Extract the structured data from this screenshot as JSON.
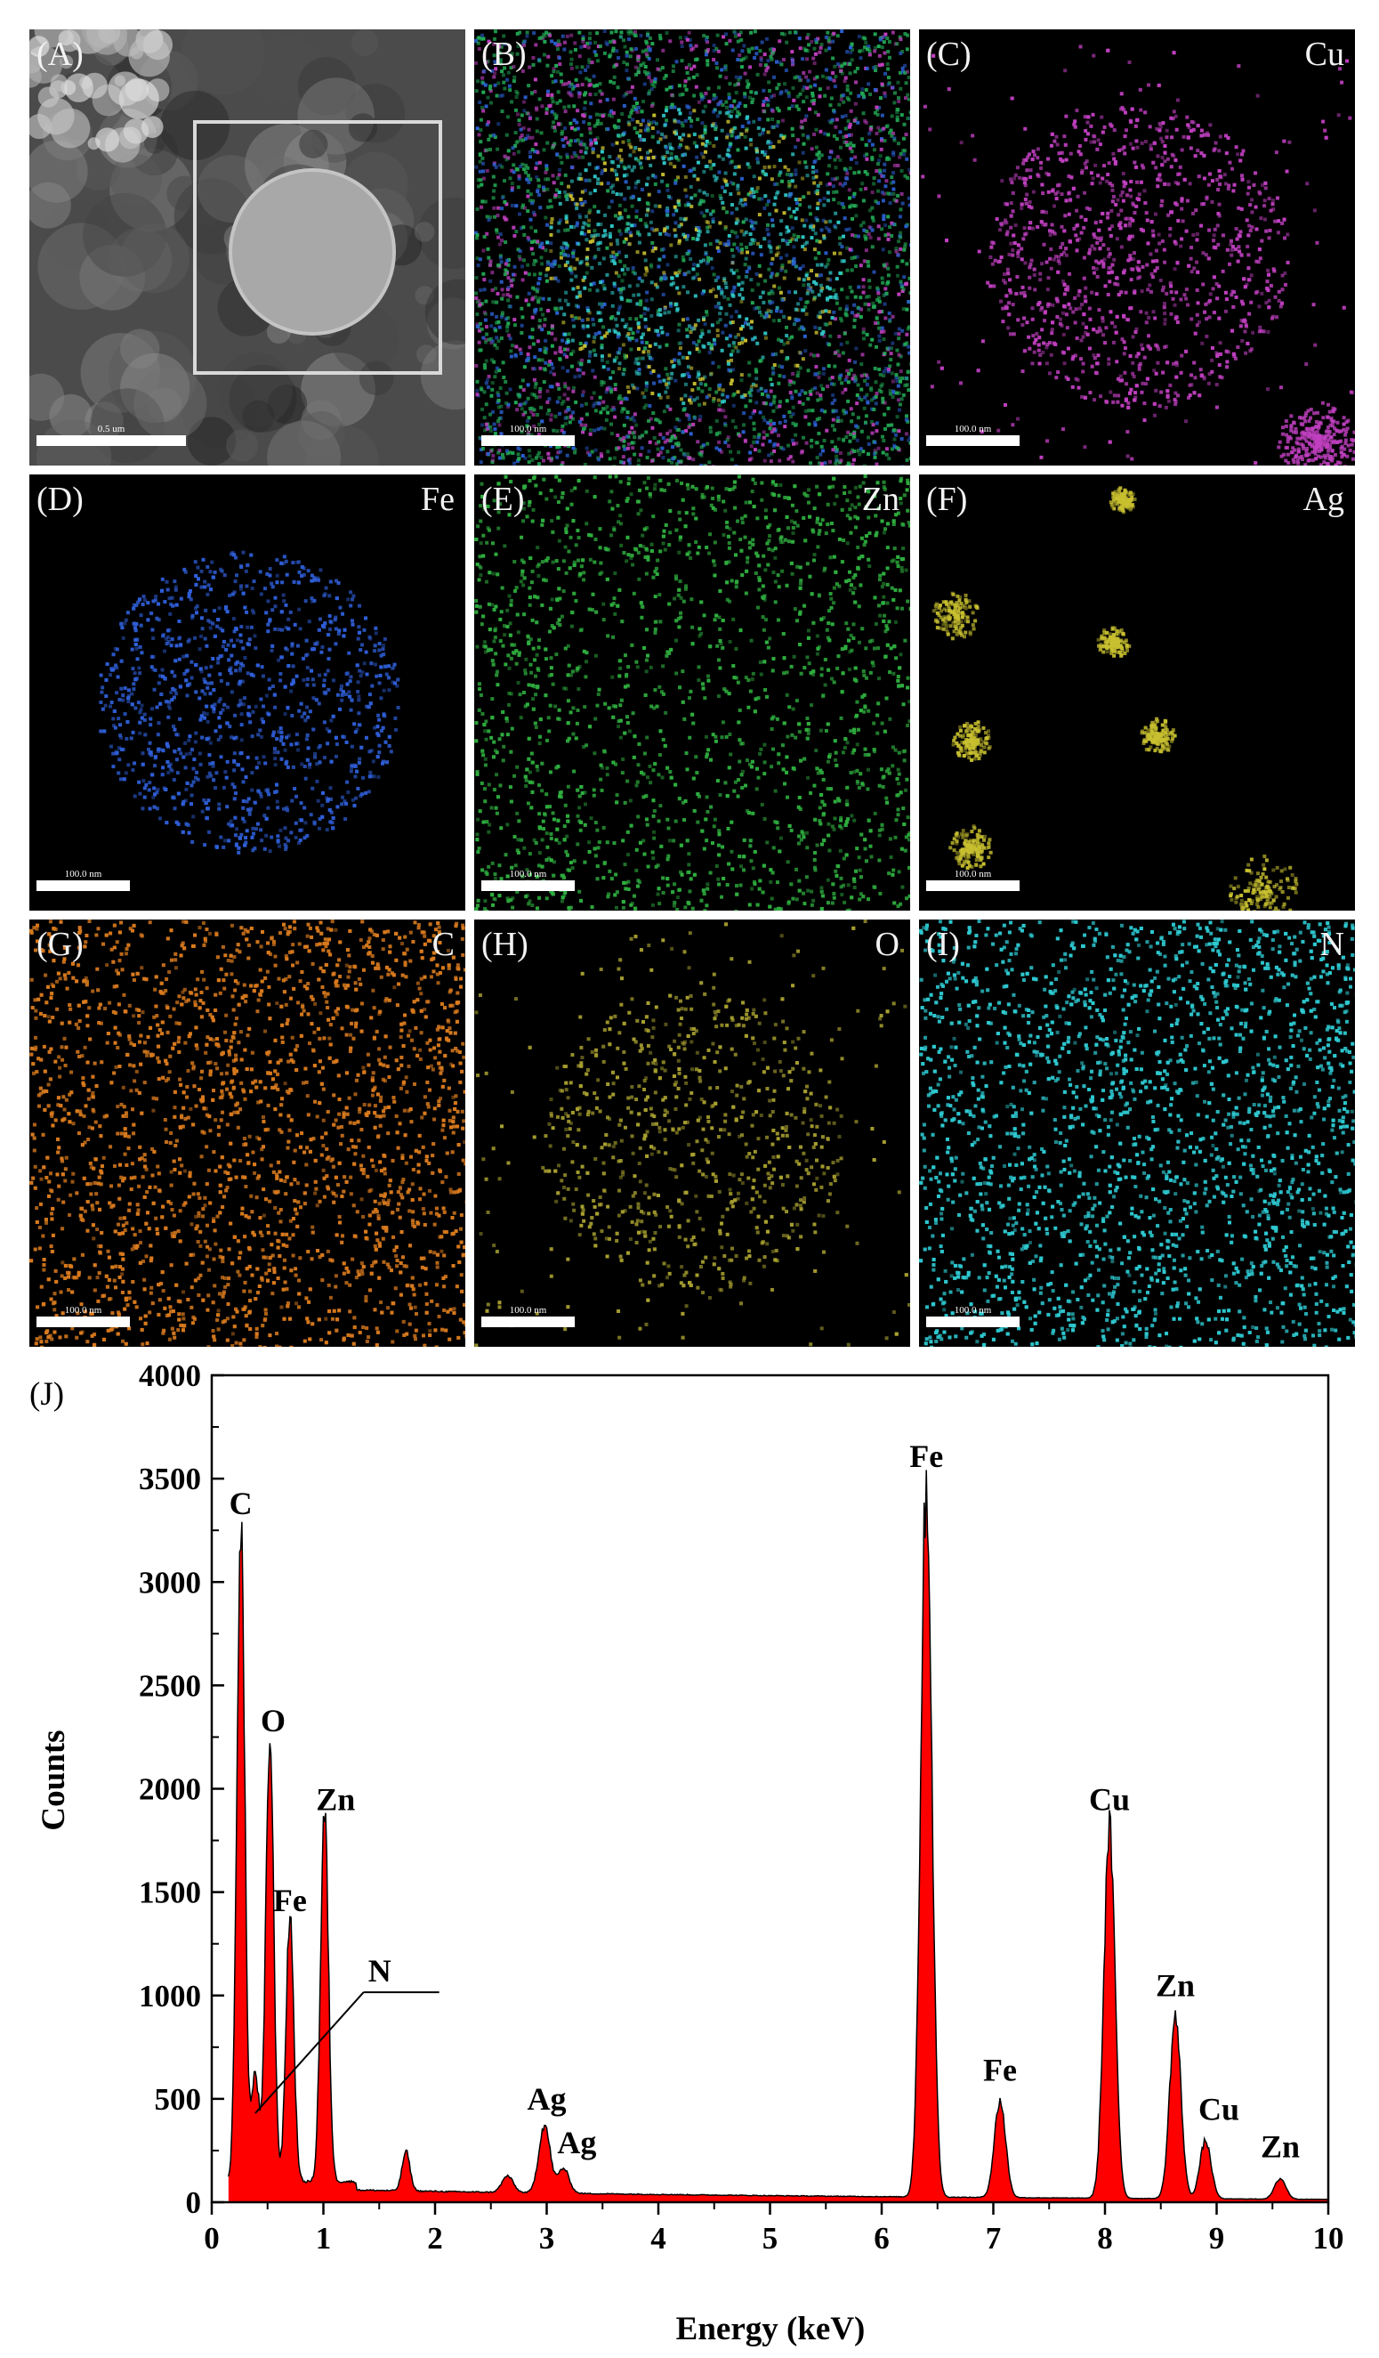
{
  "panels": [
    {
      "id": "A",
      "label": "(A)",
      "element": "",
      "color": "",
      "scale_bar": "0.5 um"
    },
    {
      "id": "B",
      "label": "(B)",
      "element": "",
      "color": "",
      "scale_bar": "100.0 nm"
    },
    {
      "id": "C",
      "label": "(C)",
      "element": "Cu",
      "color": "#c040c0",
      "scale_bar": "100.0 nm"
    },
    {
      "id": "D",
      "label": "(D)",
      "element": "Fe",
      "color": "#2f5fd8",
      "scale_bar": "100.0 nm"
    },
    {
      "id": "E",
      "label": "(E)",
      "element": "Zn",
      "color": "#2fae3f",
      "scale_bar": "100.0 nm"
    },
    {
      "id": "F",
      "label": "(F)",
      "element": "Ag",
      "color": "#c8c030",
      "scale_bar": "100.0 nm"
    },
    {
      "id": "G",
      "label": "(G)",
      "element": "C",
      "color": "#d87a1e",
      "scale_bar": "100.0 nm"
    },
    {
      "id": "H",
      "label": "(H)",
      "element": "O",
      "color": "#a8a030",
      "scale_bar": "100.0 nm"
    },
    {
      "id": "I",
      "label": "(I)",
      "element": "N",
      "color": "#2ec8d0",
      "scale_bar": "100.0 nm"
    }
  ],
  "chart_data": {
    "type": "area",
    "panel_label": "(J)",
    "xlabel": "Energy (keV)",
    "ylabel": "Counts",
    "xlim": [
      0,
      10
    ],
    "ylim": [
      0,
      4000
    ],
    "xticks": [
      0,
      1,
      2,
      3,
      4,
      5,
      6,
      7,
      8,
      9,
      10
    ],
    "yticks": [
      0,
      500,
      1000,
      1500,
      2000,
      2500,
      3000,
      3500,
      4000
    ],
    "fill_color": "#ff0000",
    "line_color": "#000000",
    "grid": false,
    "baseline_counts": 60,
    "peaks": [
      {
        "x": 0.26,
        "y": 3250
      },
      {
        "x": 0.39,
        "y": 560
      },
      {
        "x": 0.52,
        "y": 2200
      },
      {
        "x": 0.7,
        "y": 1330
      },
      {
        "x": 1.01,
        "y": 1820
      },
      {
        "x": 1.74,
        "y": 230
      },
      {
        "x": 2.65,
        "y": 120
      },
      {
        "x": 2.98,
        "y": 370
      },
      {
        "x": 3.15,
        "y": 160
      },
      {
        "x": 6.4,
        "y": 3480
      },
      {
        "x": 7.06,
        "y": 510
      },
      {
        "x": 8.04,
        "y": 1820
      },
      {
        "x": 8.63,
        "y": 920
      },
      {
        "x": 8.9,
        "y": 320
      },
      {
        "x": 9.57,
        "y": 140
      }
    ],
    "annotations": [
      {
        "text": "C",
        "x": 0.26,
        "y": 3250
      },
      {
        "text": "O",
        "x": 0.55,
        "y": 2200
      },
      {
        "text": "Zn",
        "x": 1.11,
        "y": 1820
      },
      {
        "text": "Fe",
        "x": 0.7,
        "y": 1330
      },
      {
        "text": "N",
        "x": 1.4,
        "y": 990
      },
      {
        "text": "Ag",
        "x": 3.0,
        "y": 370
      },
      {
        "text": "Ag",
        "x": 3.27,
        "y": 160
      },
      {
        "text": "Fe",
        "x": 6.4,
        "y": 3480
      },
      {
        "text": "Fe",
        "x": 7.06,
        "y": 510
      },
      {
        "text": "Cu",
        "x": 8.04,
        "y": 1820
      },
      {
        "text": "Zn",
        "x": 8.63,
        "y": 920
      },
      {
        "text": "Cu",
        "x": 9.02,
        "y": 320
      },
      {
        "text": "Zn",
        "x": 9.57,
        "y": 140
      }
    ]
  }
}
